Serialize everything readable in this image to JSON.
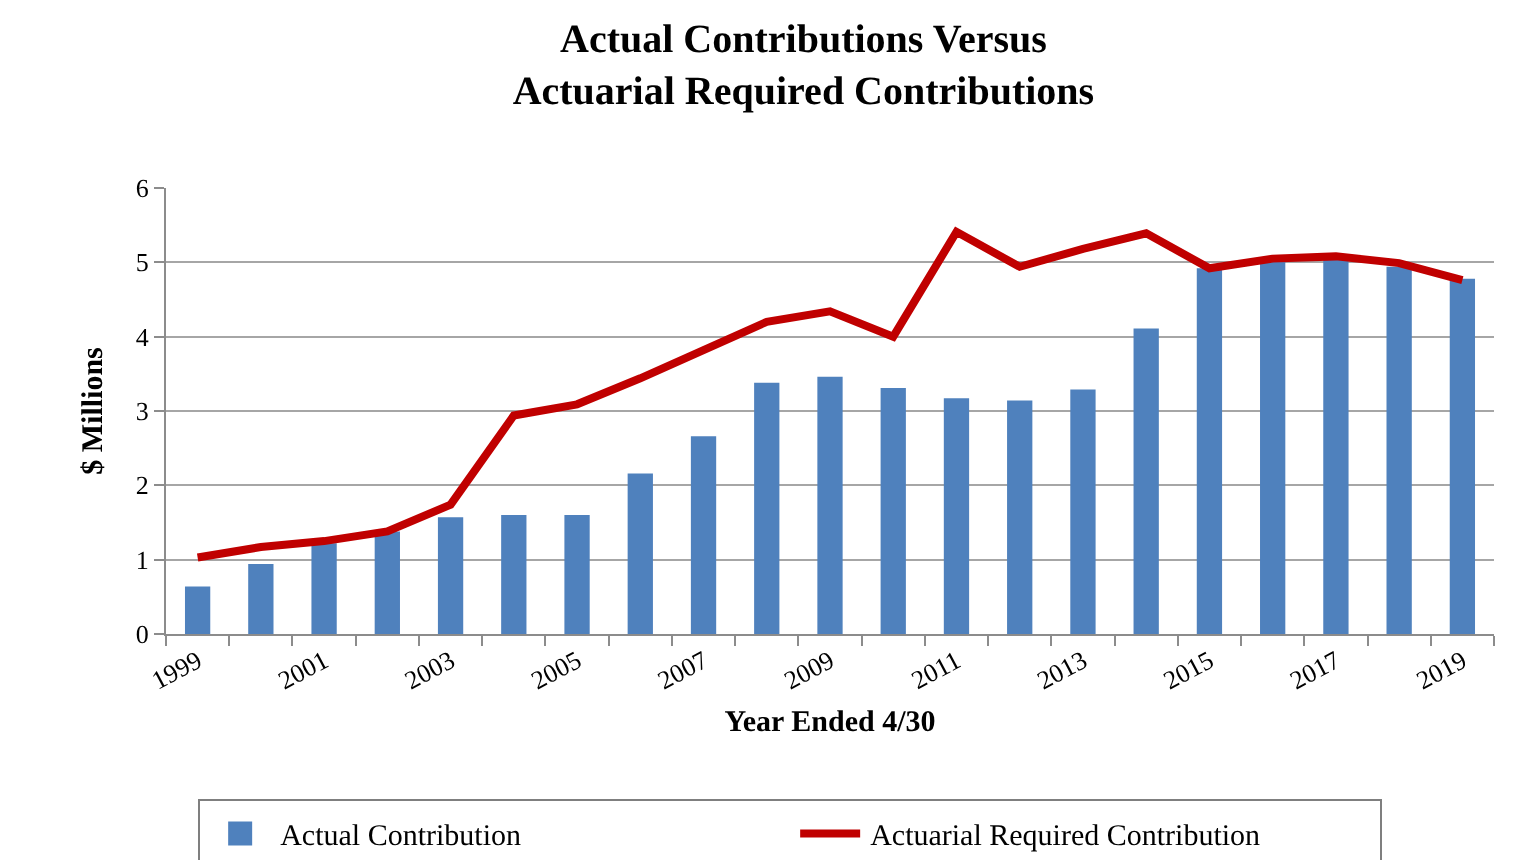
{
  "chart_data": {
    "type": "bar",
    "title": "Actual Contributions Versus\nActuarial Required Contributions",
    "xlabel": "Year Ended 4/30",
    "ylabel": "$ Millions",
    "categories": [
      "1999",
      null,
      "2001",
      null,
      "2003",
      null,
      "2005",
      null,
      "2007",
      null,
      "2009",
      null,
      "2011",
      null,
      "2013",
      null,
      "2015",
      null,
      "2017",
      null,
      "2019"
    ],
    "series": [
      {
        "name": "Actual Contribution",
        "color": "#4f81bd",
        "values": [
          0.64,
          0.94,
          1.22,
          1.38,
          1.57,
          1.6,
          1.6,
          2.16,
          2.66,
          3.38,
          3.46,
          3.31,
          3.17,
          3.14,
          3.29,
          4.11,
          4.92,
          5.01,
          5.06,
          4.94,
          4.78
        ]
      },
      {
        "name": "Actuarial Required Contribution",
        "type": "line",
        "color": "#c00000",
        "values": [
          1.03,
          1.17,
          1.25,
          1.38,
          1.74,
          2.94,
          3.09,
          3.44,
          3.82,
          4.2,
          4.34,
          4.0,
          5.41,
          4.94,
          5.18,
          5.39,
          4.92,
          5.05,
          5.08,
          4.99,
          4.76
        ]
      }
    ],
    "ylim": [
      0,
      6
    ],
    "yticks": [
      0,
      1,
      2,
      3,
      4,
      5,
      6
    ],
    "grid": "y",
    "legend": "bottom"
  }
}
